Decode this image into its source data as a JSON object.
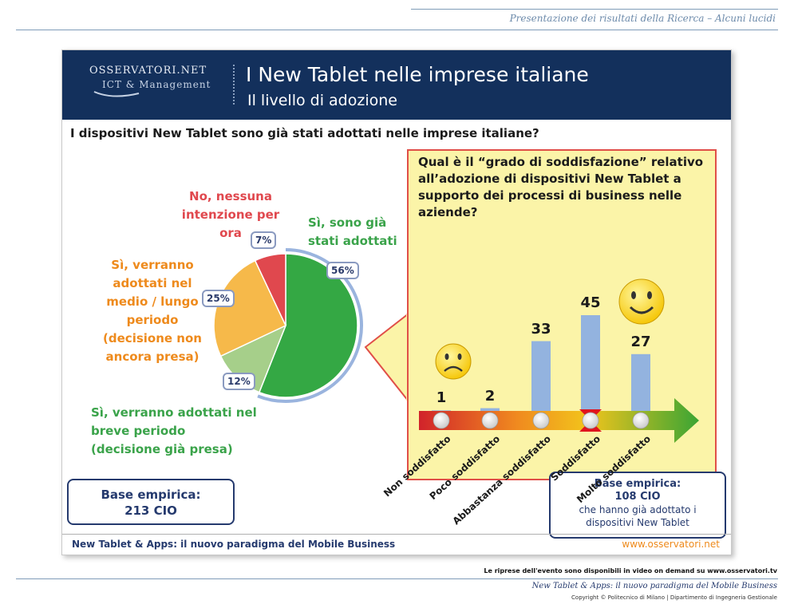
{
  "page": {
    "top_caption": "Presentazione dei risultati della Ricerca – Alcuni lucidi",
    "bottom_note": "Le riprese dell'evento sono disponibili in video on demand su www.osservatori.tv",
    "bottom_title": "New Tablet & Apps: il nuovo paradigma del Mobile Business",
    "bottom_copyright": "Copyright © Politecnico di Milano | Dipartimento di Ingegneria Gestionale"
  },
  "slide": {
    "logo_name": "OSSERVATORI.NET",
    "logo_sub": "ICT & Management",
    "title": "I New Tablet nelle imprese italiane",
    "subtitle": "Il livello di adozione",
    "question": "I dispositivi New Tablet sono già stati adottati nelle imprese italiane?",
    "footer_left": "New Tablet & Apps: il nuovo paradigma del Mobile Business",
    "footer_right": "www.osservatori.net",
    "base_left": {
      "line1": "Base empirica:",
      "line2": "213 CIO"
    },
    "base_right": {
      "line1": "Base empirica:",
      "line2": "108 CIO",
      "line3": "che hanno già adottato i",
      "line4": "dispositivi New Tablet"
    },
    "panel_question": "Qual è il “grado di soddisfazione” relativo all’adozione di dispositivi New Tablet a supporto dei processi di business nelle aziende?"
  },
  "colors": {
    "header": "#13305c",
    "red": "#e0484e",
    "orange": "#f6b94a",
    "light_green": "#a6cf8a",
    "green": "#34a844",
    "bar": "#93b3df",
    "panel": "#fbf4a8"
  },
  "chart_data": [
    {
      "type": "pie",
      "title": "I dispositivi New Tablet sono già stati adottati nelle imprese italiane?",
      "slices": [
        {
          "label_lines": [
            "Sì, sono già",
            "stati adottati"
          ],
          "value": 56,
          "pct_label": "56%",
          "color": "#34a844"
        },
        {
          "label_lines": [
            "Sì, verranno adottati nel",
            "breve periodo",
            "(decisione già presa)"
          ],
          "value": 12,
          "pct_label": "12%",
          "color": "#a6cf8a"
        },
        {
          "label_lines": [
            "Sì, verranno",
            "adottati nel",
            "medio / lungo",
            "periodo",
            "(decisione non",
            "ancora presa)"
          ],
          "value": 25,
          "pct_label": "25%",
          "color": "#f6b94a"
        },
        {
          "label_lines": [
            "No, nessuna",
            "intenzione per",
            "ora"
          ],
          "value": 7,
          "pct_label": "7%",
          "color": "#e0484e"
        }
      ]
    },
    {
      "type": "bar",
      "title": "Qual è il “grado di soddisfazione” relativo all’adozione di dispositivi New Tablet a supporto dei processi di business nelle aziende?",
      "categories": [
        "Non soddisfatto",
        "Poco soddisfatto",
        "Abbastanza soddisfatto",
        "Soddisfatto",
        "Molto soddisfatto"
      ],
      "values": [
        1,
        2,
        33,
        45,
        27
      ],
      "ylim": [
        0,
        45
      ]
    }
  ]
}
